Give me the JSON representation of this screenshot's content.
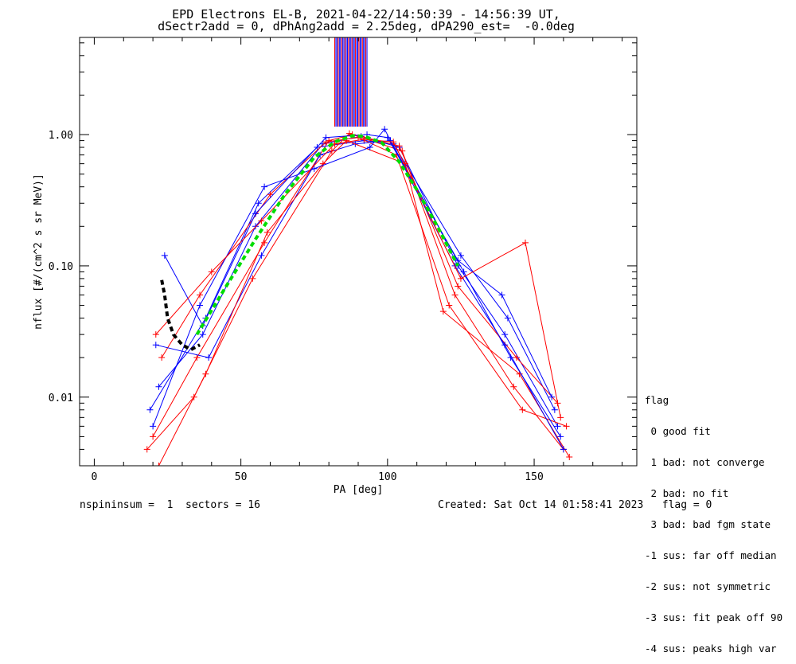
{
  "title_line1": "EPD Electrons EL-B, 2021-04-22/14:50:39 - 14:56:39 UT,",
  "title_line2": "dSectr2add = 0, dPhAng2add = 2.25deg, dPA290_est=  -0.0deg",
  "footer": {
    "left": "nspininsum =  1  sectors = 16",
    "right": "Created: Sat Oct 14 01:58:41 2023   flag = 0"
  },
  "legend": {
    "title": "flag",
    "items": [
      " 0 good fit",
      " 1 bad: not converge",
      " 2 bad: no fit",
      " 3 bad: bad fgm state",
      "-1 sus: far off median",
      "-2 sus: not symmetric",
      "-3 sus: fit peak off 90",
      "-4 sus: peaks high var"
    ]
  },
  "chart_data": {
    "type": "line",
    "xlabel": "PA [deg]",
    "ylabel": "nflux [#/(cm^2 s sr MeV)]",
    "xlim": [
      -5,
      185
    ],
    "ylim": [
      0.003,
      5.5
    ],
    "ylog": true,
    "xticks": [
      0,
      50,
      100,
      150
    ],
    "xtick_labels": [
      "0",
      "50",
      "100",
      "150"
    ],
    "yticks": [
      0.01,
      0.1,
      1.0
    ],
    "ytick_labels": [
      "0.01",
      "0.10",
      "1.00"
    ],
    "colors": {
      "blue": "#0000ff",
      "red": "#ff0000",
      "fit": "#00dd00",
      "lowfit": "#000000"
    },
    "series": [
      {
        "color": "blue",
        "x": [
          22,
          37,
          55,
          78,
          91,
          104,
          124,
          140,
          158
        ],
        "y": [
          0.012,
          0.03,
          0.2,
          0.85,
          0.97,
          0.8,
          0.1,
          0.03,
          0.006
        ]
      },
      {
        "color": "red",
        "x": [
          20,
          35,
          58,
          80,
          88,
          105,
          123,
          143,
          160
        ],
        "y": [
          0.005,
          0.02,
          0.15,
          0.9,
          1.0,
          0.75,
          0.06,
          0.012,
          0.004
        ]
      },
      {
        "color": "blue",
        "x": [
          19,
          38,
          56,
          76,
          92,
          102,
          125,
          141,
          157
        ],
        "y": [
          0.008,
          0.04,
          0.3,
          0.8,
          0.9,
          0.85,
          0.12,
          0.04,
          0.008
        ]
      },
      {
        "color": "red",
        "x": [
          23,
          36,
          60,
          79,
          90,
          103,
          121,
          146,
          161
        ],
        "y": [
          0.02,
          0.06,
          0.35,
          0.88,
          0.95,
          0.7,
          0.05,
          0.008,
          0.006
        ]
      },
      {
        "color": "blue",
        "x": [
          21,
          39,
          57,
          77,
          89,
          101,
          126,
          142,
          159
        ],
        "y": [
          0.025,
          0.02,
          0.12,
          0.7,
          0.85,
          0.9,
          0.09,
          0.02,
          0.005
        ]
      },
      {
        "color": "red",
        "x": [
          18,
          34,
          54,
          81,
          87,
          104,
          124,
          144,
          158
        ],
        "y": [
          0.004,
          0.01,
          0.08,
          0.75,
          1.02,
          0.82,
          0.07,
          0.02,
          0.009
        ]
      },
      {
        "color": "blue",
        "x": [
          24,
          37,
          55,
          79,
          93,
          100,
          124,
          139,
          156
        ],
        "y": [
          0.12,
          0.035,
          0.25,
          0.95,
          1.0,
          0.95,
          0.11,
          0.06,
          0.01
        ]
      },
      {
        "color": "red",
        "x": [
          22,
          38,
          59,
          78,
          86,
          106,
          119,
          145,
          162
        ],
        "y": [
          0.003,
          0.015,
          0.18,
          0.6,
          0.9,
          0.6,
          0.045,
          0.015,
          0.0035
        ]
      },
      {
        "color": "blue",
        "x": [
          20,
          36,
          58,
          75,
          94,
          99,
          123,
          140,
          160
        ],
        "y": [
          0.006,
          0.05,
          0.4,
          0.55,
          0.8,
          1.1,
          0.1,
          0.025,
          0.004
        ]
      },
      {
        "color": "red",
        "x": [
          21,
          40,
          57,
          82,
          92,
          102,
          125,
          147,
          159
        ],
        "y": [
          0.03,
          0.09,
          0.22,
          0.85,
          0.92,
          0.88,
          0.08,
          0.15,
          0.007
        ]
      }
    ],
    "fit": {
      "color": "fit",
      "x": [
        35,
        45,
        55,
        65,
        75,
        82,
        88,
        92,
        98,
        104,
        110,
        117,
        124
      ],
      "y": [
        0.03,
        0.07,
        0.16,
        0.35,
        0.67,
        0.88,
        0.98,
        0.97,
        0.87,
        0.62,
        0.38,
        0.2,
        0.1
      ]
    },
    "lowfit": {
      "color": "lowfit",
      "x": [
        23,
        24,
        25,
        27,
        30,
        33,
        36
      ],
      "y": [
        0.078,
        0.06,
        0.04,
        0.03,
        0.025,
        0.023,
        0.025
      ]
    },
    "spikes": {
      "x_from": 82,
      "x_to": 93,
      "y_from": 1.15,
      "y_to": 5.5
    }
  }
}
